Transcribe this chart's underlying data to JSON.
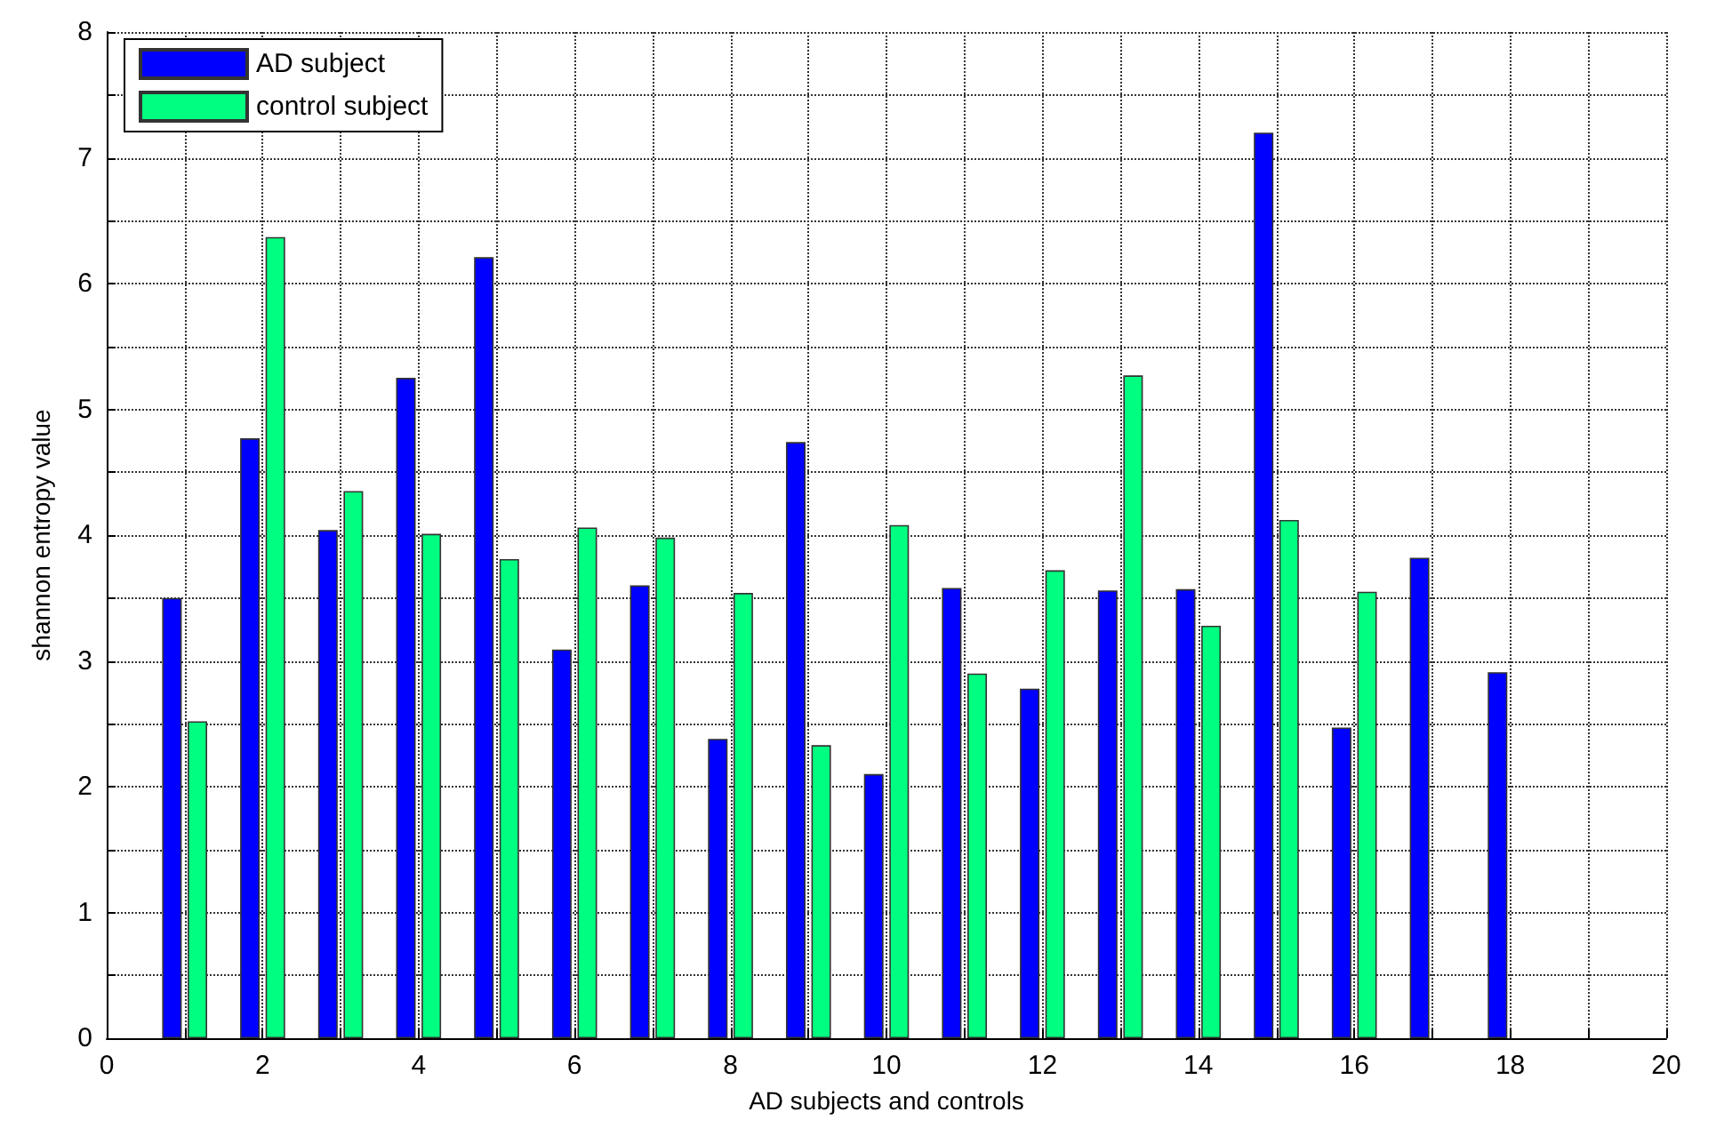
{
  "chart_data": {
    "type": "bar",
    "xlabel": "AD subjects and controls",
    "ylabel": "shannon entropy value",
    "series": [
      {
        "name": "AD subject",
        "color": "#0000ff",
        "x": [
          1,
          2,
          3,
          4,
          5,
          6,
          7,
          8,
          9,
          10,
          11,
          12,
          13,
          14,
          15,
          16,
          17,
          18
        ],
        "values": [
          3.5,
          4.77,
          4.04,
          5.25,
          6.21,
          3.09,
          3.6,
          2.38,
          4.74,
          2.1,
          3.58,
          2.78,
          3.56,
          3.57,
          7.2,
          2.47,
          3.82,
          2.91
        ]
      },
      {
        "name": "control subject",
        "color": "#00ff80",
        "x": [
          1,
          2,
          3,
          4,
          5,
          6,
          7,
          8,
          9,
          10,
          11,
          12,
          13,
          14,
          15,
          16
        ],
        "values": [
          2.52,
          6.37,
          4.35,
          4.01,
          3.81,
          4.06,
          3.98,
          3.54,
          2.33,
          4.08,
          2.9,
          3.72,
          5.27,
          3.28,
          4.12,
          3.55
        ]
      }
    ],
    "xlim": [
      0,
      20
    ],
    "xticks": [
      0,
      {
        "value": 1,
        "label": null
      },
      2,
      {
        "value": 3,
        "label": null
      },
      4,
      {
        "value": 5,
        "label": null
      },
      6,
      {
        "value": 7,
        "label": null
      },
      8,
      {
        "value": 9,
        "label": null
      },
      10,
      {
        "value": 11,
        "label": null
      },
      12,
      {
        "value": 13,
        "label": null
      },
      14,
      {
        "value": 15,
        "label": null
      },
      16,
      {
        "value": 17,
        "label": null
      },
      18,
      {
        "value": 19,
        "label": null
      },
      20
    ],
    "ylim": [
      0,
      8
    ],
    "yticks": [
      0,
      {
        "value": 0.5,
        "label": null
      },
      1,
      {
        "value": 1.5,
        "label": null
      },
      2,
      {
        "value": 2.5,
        "label": null
      },
      3,
      {
        "value": 3.5,
        "label": null
      },
      4,
      {
        "value": 4.5,
        "label": null
      },
      5,
      {
        "value": 5.5,
        "label": null
      },
      6,
      {
        "value": 6.5,
        "label": null
      },
      7,
      {
        "value": 7.5,
        "label": null
      },
      8
    ],
    "grid": true,
    "legend": "top left"
  }
}
